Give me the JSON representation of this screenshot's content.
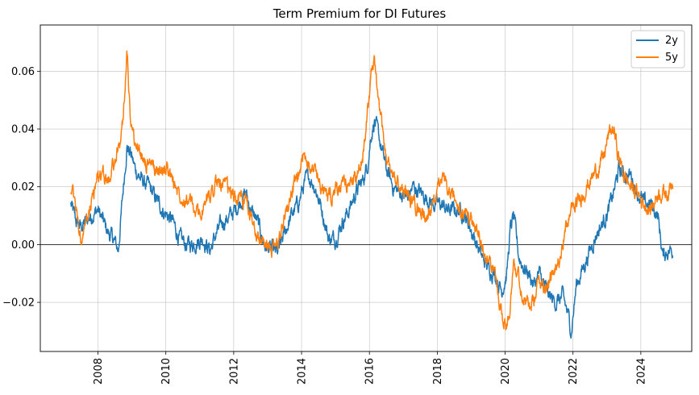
{
  "chart_data": {
    "type": "line",
    "title": "Term Premium for DI Futures",
    "xlabel": "",
    "ylabel": "",
    "xlim": [
      2006.3,
      2025.5
    ],
    "ylim": [
      -0.037,
      0.076
    ],
    "x_ticks": [
      2008,
      2010,
      2012,
      2014,
      2016,
      2018,
      2020,
      2022,
      2024
    ],
    "x_tick_labels": [
      "2008",
      "2010",
      "2012",
      "2014",
      "2016",
      "2018",
      "2020",
      "2022",
      "2024"
    ],
    "y_ticks": [
      -0.02,
      0.0,
      0.02,
      0.04,
      0.06
    ],
    "y_tick_labels": [
      "−0.02",
      "0.00",
      "0.02",
      "0.04",
      "0.06"
    ],
    "grid": true,
    "zero_line": 0.0,
    "legend_position": "top-right",
    "series": [
      {
        "name": "2y",
        "color": "#1f77b4",
        "x": [
          2007.2,
          2007.35,
          2007.5,
          2007.65,
          2007.8,
          2008.0,
          2008.15,
          2008.3,
          2008.45,
          2008.6,
          2008.75,
          2008.85,
          2008.95,
          2009.1,
          2009.3,
          2009.5,
          2009.7,
          2009.9,
          2010.05,
          2010.2,
          2010.4,
          2010.6,
          2010.75,
          2010.9,
          2011.1,
          2011.3,
          2011.5,
          2011.7,
          2011.9,
          2012.05,
          2012.2,
          2012.35,
          2012.5,
          2012.7,
          2012.9,
          2013.1,
          2013.3,
          2013.5,
          2013.7,
          2013.9,
          2014.05,
          2014.2,
          2014.4,
          2014.6,
          2014.8,
          2015.0,
          2015.2,
          2015.4,
          2015.6,
          2015.8,
          2015.95,
          2016.05,
          2016.15,
          2016.3,
          2016.5,
          2016.7,
          2016.9,
          2017.1,
          2017.3,
          2017.5,
          2017.7,
          2017.9,
          2018.1,
          2018.3,
          2018.5,
          2018.7,
          2018.9,
          2019.1,
          2019.3,
          2019.5,
          2019.7,
          2019.9,
          2020.05,
          2020.15,
          2020.25,
          2020.4,
          2020.55,
          2020.7,
          2020.85,
          2021.0,
          2021.15,
          2021.3,
          2021.5,
          2021.7,
          2021.85,
          2021.95,
          2022.1,
          2022.3,
          2022.5,
          2022.7,
          2022.9,
          2023.05,
          2023.2,
          2023.35,
          2023.5,
          2023.7,
          2023.9,
          2024.1,
          2024.3,
          2024.5,
          2024.65,
          2024.8,
          2024.95
        ],
        "values": [
          0.014,
          0.008,
          0.006,
          0.008,
          0.01,
          0.012,
          0.008,
          0.004,
          0.002,
          -0.002,
          0.02,
          0.034,
          0.032,
          0.026,
          0.022,
          0.02,
          0.016,
          0.012,
          0.01,
          0.008,
          0.002,
          0.0,
          0.0,
          0.001,
          0.002,
          -0.002,
          0.004,
          0.008,
          0.01,
          0.012,
          0.015,
          0.018,
          0.012,
          0.008,
          0.0,
          -0.002,
          -0.003,
          0.004,
          0.01,
          0.014,
          0.02,
          0.024,
          0.02,
          0.012,
          0.002,
          0.002,
          0.008,
          0.012,
          0.018,
          0.022,
          0.028,
          0.038,
          0.043,
          0.036,
          0.026,
          0.02,
          0.018,
          0.016,
          0.02,
          0.018,
          0.016,
          0.014,
          0.014,
          0.012,
          0.012,
          0.012,
          0.008,
          0.002,
          -0.004,
          -0.008,
          -0.01,
          -0.016,
          -0.01,
          0.005,
          0.01,
          -0.004,
          -0.008,
          -0.01,
          -0.014,
          -0.01,
          -0.014,
          -0.018,
          -0.02,
          -0.018,
          -0.024,
          -0.03,
          -0.014,
          -0.008,
          -0.002,
          0.004,
          0.008,
          0.012,
          0.018,
          0.026,
          0.024,
          0.024,
          0.018,
          0.014,
          0.014,
          0.01,
          -0.004,
          -0.002,
          -0.002
        ]
      },
      {
        "name": "5y",
        "color": "#ff7f0e",
        "x": [
          2007.2,
          2007.35,
          2007.5,
          2007.65,
          2007.8,
          2008.0,
          2008.15,
          2008.3,
          2008.45,
          2008.6,
          2008.75,
          2008.85,
          2008.95,
          2009.1,
          2009.3,
          2009.5,
          2009.7,
          2009.9,
          2010.05,
          2010.2,
          2010.4,
          2010.6,
          2010.75,
          2010.9,
          2011.1,
          2011.3,
          2011.5,
          2011.7,
          2011.9,
          2012.05,
          2012.2,
          2012.35,
          2012.5,
          2012.7,
          2012.9,
          2013.1,
          2013.3,
          2013.5,
          2013.7,
          2013.9,
          2014.05,
          2014.2,
          2014.4,
          2014.6,
          2014.8,
          2015.0,
          2015.2,
          2015.4,
          2015.6,
          2015.8,
          2015.95,
          2016.05,
          2016.15,
          2016.3,
          2016.5,
          2016.7,
          2016.9,
          2017.1,
          2017.3,
          2017.5,
          2017.7,
          2017.9,
          2018.1,
          2018.3,
          2018.5,
          2018.7,
          2018.9,
          2019.1,
          2019.3,
          2019.5,
          2019.7,
          2019.9,
          2020.05,
          2020.15,
          2020.25,
          2020.4,
          2020.55,
          2020.7,
          2020.85,
          2021.0,
          2021.15,
          2021.3,
          2021.5,
          2021.7,
          2021.85,
          2021.95,
          2022.1,
          2022.3,
          2022.5,
          2022.7,
          2022.9,
          2023.05,
          2023.2,
          2023.35,
          2023.5,
          2023.7,
          2023.9,
          2024.1,
          2024.3,
          2024.5,
          2024.65,
          2024.8,
          2024.95
        ],
        "values": [
          0.02,
          0.012,
          0.0,
          0.008,
          0.014,
          0.024,
          0.024,
          0.022,
          0.028,
          0.032,
          0.045,
          0.068,
          0.045,
          0.034,
          0.03,
          0.028,
          0.026,
          0.026,
          0.026,
          0.022,
          0.018,
          0.016,
          0.014,
          0.01,
          0.012,
          0.018,
          0.022,
          0.02,
          0.018,
          0.016,
          0.017,
          0.014,
          0.01,
          0.004,
          0.0,
          -0.002,
          0.0,
          0.01,
          0.018,
          0.022,
          0.03,
          0.03,
          0.026,
          0.02,
          0.016,
          0.018,
          0.02,
          0.022,
          0.022,
          0.03,
          0.048,
          0.058,
          0.062,
          0.046,
          0.03,
          0.024,
          0.02,
          0.018,
          0.014,
          0.012,
          0.01,
          0.014,
          0.024,
          0.018,
          0.016,
          0.01,
          0.01,
          0.006,
          0.002,
          -0.006,
          -0.01,
          -0.024,
          -0.028,
          -0.02,
          -0.004,
          -0.012,
          -0.018,
          -0.022,
          -0.02,
          -0.012,
          -0.014,
          -0.012,
          -0.01,
          0.002,
          0.008,
          0.012,
          0.014,
          0.018,
          0.022,
          0.026,
          0.03,
          0.038,
          0.04,
          0.03,
          0.024,
          0.02,
          0.018,
          0.014,
          0.012,
          0.018,
          0.018,
          0.018,
          0.022
        ]
      }
    ]
  }
}
